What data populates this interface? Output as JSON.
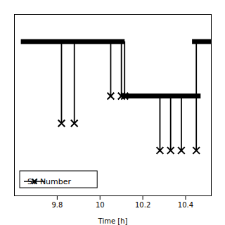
{
  "chart_data": {
    "type": "timeline",
    "xlabel": "Time [h]",
    "xlim": [
      9.6,
      10.52
    ],
    "xticks": [
      9.8,
      10,
      10.2,
      10.4
    ],
    "ylim": [
      0,
      10
    ],
    "tick_labels": "x",
    "grid": false,
    "color": "black",
    "segments": [
      {
        "x0": 9.63,
        "x1": 10.115,
        "y": 8.5
      },
      {
        "x0": 10.1,
        "x1": 10.47,
        "y": 5.5
      },
      {
        "x0": 10.43,
        "x1": 10.52,
        "y": 8.5
      }
    ],
    "verticals": [
      {
        "x": 9.82,
        "y_top": 8.5,
        "y_bot": 4.0
      },
      {
        "x": 9.88,
        "y_top": 8.5,
        "y_bot": 4.0
      },
      {
        "x": 10.05,
        "y_top": 8.5,
        "y_bot": 5.5
      },
      {
        "x": 10.1,
        "y_top": 8.5,
        "y_bot": 5.5
      },
      {
        "x": 10.115,
        "y_top": 8.5,
        "y_bot": 5.5
      },
      {
        "x": 10.28,
        "y_top": 5.5,
        "y_bot": 2.5
      },
      {
        "x": 10.33,
        "y_top": 5.5,
        "y_bot": 2.5
      },
      {
        "x": 10.38,
        "y_top": 5.5,
        "y_bot": 2.5
      },
      {
        "x": 10.45,
        "y_top": 8.5,
        "y_bot": 2.5
      }
    ],
    "series": [
      {
        "name": "SV Number",
        "type": "scatter",
        "marker": "x",
        "line_style": "solid",
        "color": "black",
        "x": [
          9.82,
          9.88,
          10.05,
          10.1,
          10.115,
          10.28,
          10.33,
          10.38,
          10.45
        ],
        "values": [
          4.0,
          4.0,
          5.5,
          5.5,
          5.5,
          2.5,
          2.5,
          2.5,
          2.5
        ]
      }
    ],
    "legend": "lower left"
  }
}
